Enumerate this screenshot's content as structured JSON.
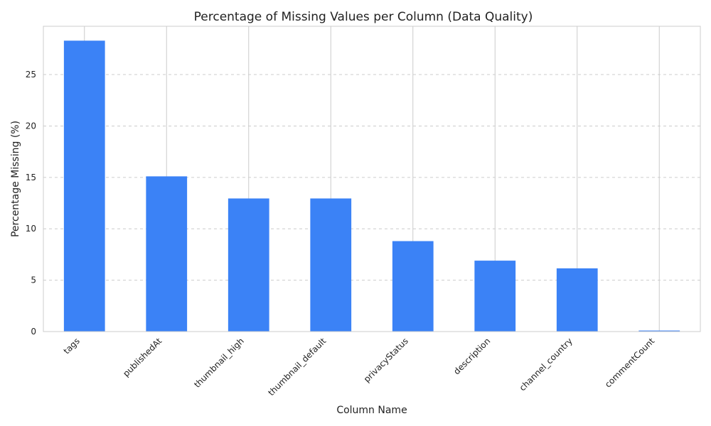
{
  "chart_data": {
    "type": "bar",
    "title": "Percentage of Missing Values per Column (Data Quality)",
    "xlabel": "Column Name",
    "ylabel": "Percentage Missing (%)",
    "categories": [
      "tags",
      "publishedAt",
      "thumbnail_high",
      "thumbnail_default",
      "privacyStatus",
      "description",
      "channel_country",
      "commentCount"
    ],
    "values": [
      28.3,
      15.1,
      12.95,
      12.95,
      8.8,
      6.9,
      6.15,
      0.1
    ],
    "ylim": [
      0,
      29.7
    ],
    "yticks": [
      0,
      5,
      10,
      15,
      20,
      25
    ],
    "grid": true,
    "bar_color": "#3b82f6"
  }
}
